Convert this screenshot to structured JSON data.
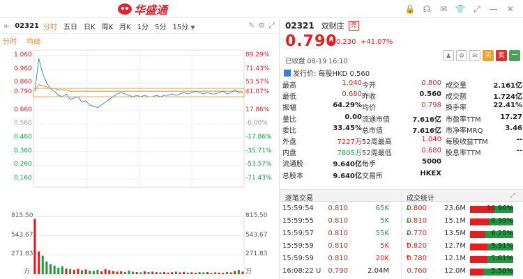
{
  "title_bar": {
    "brand": "华盛通",
    "icons": [
      "lock-icon",
      "headset-icon",
      "mail-icon",
      "shirt-icon",
      "expand-icon",
      "minimize-icon",
      "close-icon"
    ]
  },
  "toolbar": {
    "code": "02321",
    "tabs": [
      "分时",
      "五日",
      "日K",
      "周K",
      "月K",
      "1分",
      "5分",
      "15分"
    ],
    "active_tab": "分时",
    "dropdown_symbol": "▼"
  },
  "subtabs": [
    "分时",
    "均线"
  ],
  "chart_data": {
    "type": "line",
    "prev_close": 0.56,
    "y_ticks": [
      "1.060",
      "0.960",
      "0.860",
      "0.790",
      "0.660",
      "0.560",
      "0.460",
      "0.360",
      "0.260",
      "0.160"
    ],
    "pct_ticks": [
      "89.29%",
      "71.43%",
      "53.57%",
      "41.07%",
      "17.86%",
      "-0.00%",
      "-17.86%",
      "-35.71%",
      "-53.57%",
      "-71.43%"
    ],
    "ylim": [
      0.1,
      1.1
    ],
    "current_price_label": "0.790",
    "current_pct_label": "41.07%",
    "volume_ticks": [
      "815.50",
      "543.67",
      "271.83"
    ],
    "volume_unit": "万",
    "price_series": [
      0.8,
      1.04,
      0.93,
      0.86,
      0.82,
      0.8,
      0.77,
      0.76,
      0.78,
      0.74,
      0.75,
      0.76,
      0.72,
      0.73,
      0.7,
      0.69,
      0.68,
      0.7,
      0.72,
      0.74,
      0.76,
      0.78,
      0.79,
      0.78,
      0.77,
      0.76,
      0.77,
      0.76,
      0.77,
      0.76,
      0.76,
      0.77,
      0.76,
      0.77,
      0.77,
      0.78,
      0.77,
      0.78,
      0.79,
      0.78,
      0.79,
      0.8,
      0.79,
      0.78,
      0.79,
      0.78,
      0.78,
      0.79,
      0.8,
      0.78,
      0.79,
      0.81,
      0.79,
      0.79
    ],
    "avg_series": [
      0.8,
      0.85,
      0.84,
      0.83,
      0.82,
      0.82,
      0.81,
      0.81,
      0.81,
      0.8,
      0.8,
      0.8,
      0.8,
      0.8,
      0.8,
      0.8,
      0.8,
      0.8,
      0.8,
      0.8,
      0.8,
      0.8,
      0.8,
      0.8,
      0.8,
      0.8,
      0.8,
      0.8,
      0.8,
      0.8,
      0.8,
      0.8,
      0.8,
      0.8,
      0.8,
      0.8,
      0.8,
      0.8,
      0.8,
      0.8,
      0.8,
      0.8,
      0.8,
      0.8,
      0.8,
      0.8,
      0.8,
      0.8,
      0.8,
      0.8,
      0.8,
      0.8,
      0.8,
      0.8
    ],
    "volume_series": [
      780,
      320,
      260,
      180,
      140,
      120,
      90,
      110,
      80,
      70,
      60,
      75,
      55,
      65,
      50,
      45,
      60,
      40,
      70,
      55,
      45,
      35,
      40,
      30,
      50,
      35,
      30,
      25,
      40,
      30,
      35,
      28,
      25,
      30,
      22,
      28,
      35,
      25,
      30,
      22,
      26,
      20,
      28,
      24,
      30,
      18,
      25,
      22,
      20,
      30,
      25,
      45,
      60,
      35
    ]
  },
  "quote": {
    "code": "02321",
    "name": "双财庄",
    "tag": "亮",
    "price": "0.790",
    "change_arrow": "▲",
    "change": "0.230",
    "change_pct": "+41.07%",
    "status": "已收盘 08-19 16:10",
    "action_buttons": [
      "♟",
      "⚙",
      "✉",
      "买",
      "卖",
      "一"
    ],
    "ipo_text": "发行价: 每股HKD 0.560"
  },
  "stats": [
    [
      [
        "最高",
        "1.040",
        "red"
      ],
      [
        "今开",
        "0.800",
        "red"
      ],
      [
        "成交量",
        "2.161亿",
        "blk"
      ]
    ],
    [
      [
        "最低",
        "0.680",
        "red"
      ],
      [
        "昨收",
        "0.560",
        "blk"
      ],
      [
        "成交额",
        "1.724亿",
        "blk"
      ]
    ],
    [
      [
        "振幅",
        "64.29%",
        "blk"
      ],
      [
        "均价",
        "0.798",
        "red"
      ],
      [
        "换手率",
        "22.41%",
        "blk"
      ]
    ],
    [
      [
        "量比",
        "0.00",
        "blk"
      ],
      [
        "流通市值",
        "7.616亿",
        "blk"
      ],
      [
        "市盈率TTM",
        "17.27",
        "blk"
      ]
    ],
    [
      [
        "委比",
        "33.45%",
        "blk"
      ],
      [
        "总市值",
        "7.616亿",
        "blk"
      ],
      [
        "市净率MRQ",
        "3.46",
        "blk"
      ]
    ],
    [
      [
        "外盘",
        "7227万",
        "red"
      ],
      [
        "52周最高",
        "1.040",
        "red"
      ],
      [
        "每股收益TTM",
        "--",
        "blk"
      ]
    ],
    [
      [
        "内盘",
        "7805万",
        "green"
      ],
      [
        "52周最低",
        "0.680",
        "red"
      ],
      [
        "股息率TTM",
        "--",
        "blk"
      ]
    ],
    [
      [
        "流通股",
        "9.640亿",
        "blk"
      ],
      [
        "每手",
        "5000",
        "blk"
      ],
      [
        "",
        "",
        " "
      ]
    ],
    [
      [
        "总股本",
        "9.640亿",
        "blk"
      ],
      [
        "交易所",
        "HKEX",
        "blk"
      ],
      [
        "",
        "",
        " "
      ]
    ]
  ],
  "trades_header": {
    "left": "逐笔交易",
    "right": "成交统计"
  },
  "trades": [
    {
      "time": "15:59:54",
      "flag": "",
      "price": "0.810",
      "vol": "65K",
      "dir": "down"
    },
    {
      "time": "15:59:55",
      "flag": "",
      "price": "0.810",
      "vol": "5K",
      "dir": "down"
    },
    {
      "time": "15:59:57",
      "flag": "",
      "price": "0.810",
      "vol": "55K",
      "dir": "down"
    },
    {
      "time": "15:59:59",
      "flag": "",
      "price": "0.810",
      "vol": "5K",
      "dir": "up"
    },
    {
      "time": "15:59:59",
      "flag": "",
      "price": "0.810",
      "vol": "20K",
      "dir": "up"
    },
    {
      "time": "16:08:22",
      "flag": "U",
      "price": "0.790",
      "vol": "2.04M",
      "dir": ""
    }
  ],
  "stats_trades": [
    {
      "price": "0.800",
      "vol": "23.6M",
      "pct": "10.96%",
      "red": 0.55
    },
    {
      "price": "0.810",
      "vol": "15.1M",
      "pct": "6.99%",
      "red": 0.45
    },
    {
      "price": "0.770",
      "vol": "13.5M",
      "pct": "6.25%",
      "red": 0.35
    },
    {
      "price": "0.820",
      "vol": "12.7M",
      "pct": "5.91%",
      "red": 0.4
    },
    {
      "price": "0.780",
      "vol": "12.1M",
      "pct": "5.61%",
      "red": 0.4
    },
    {
      "price": "0.760",
      "vol": "12.0M",
      "pct": "5.58%",
      "red": 0.3
    }
  ]
}
